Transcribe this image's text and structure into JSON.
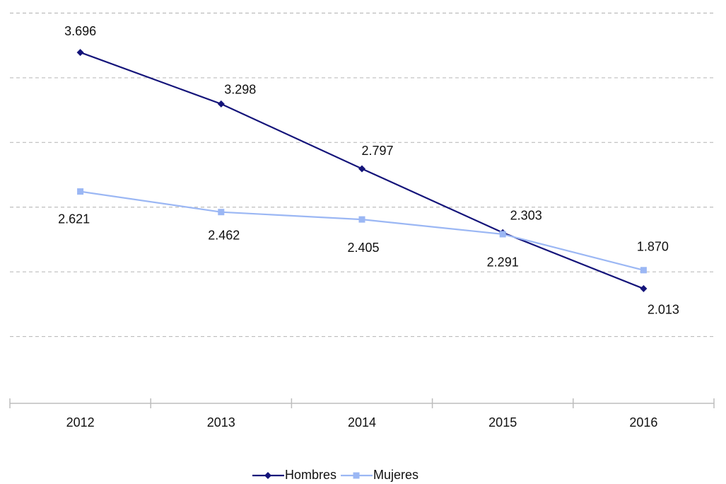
{
  "chart_data": {
    "type": "line",
    "categories": [
      "2012",
      "2013",
      "2014",
      "2015",
      "2016"
    ],
    "series": [
      {
        "name": "Hombres",
        "color": "#14147a",
        "marker": "diamond",
        "values": [
          3696,
          3298,
          2797,
          2303,
          1870
        ],
        "value_labels": [
          "3.696",
          "3.298",
          "2.797",
          "2.303",
          "1.870"
        ]
      },
      {
        "name": "Mujeres",
        "color": "#9bb7f4",
        "marker": "square",
        "values": [
          2621,
          2462,
          2405,
          2291,
          2013
        ],
        "value_labels": [
          "2.621",
          "2.462",
          "2.405",
          "2.291",
          "2.013"
        ]
      }
    ],
    "ylim": [
      1000,
      4000
    ],
    "yticks": [
      1000,
      1500,
      2000,
      2500,
      3000,
      3500,
      4000
    ],
    "grid": true,
    "legend": "bottom"
  }
}
